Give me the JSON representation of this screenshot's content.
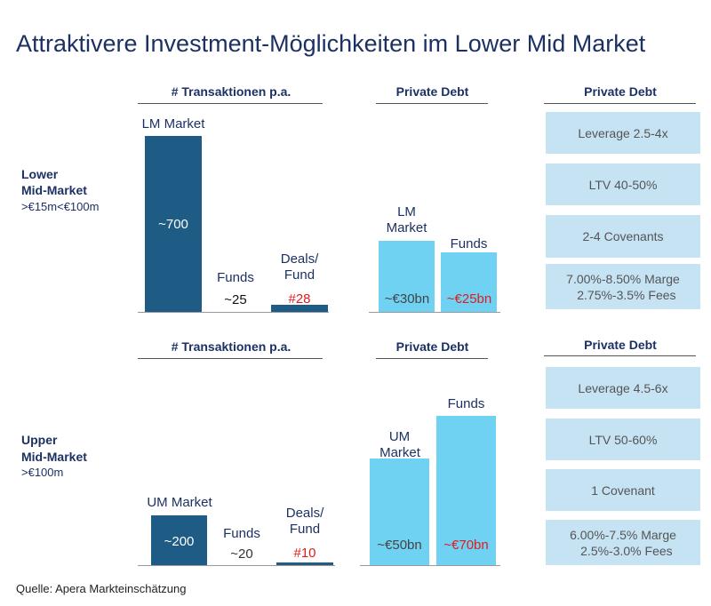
{
  "title": "Attraktivere Investment-Möglichkeiten im Lower Mid Market",
  "source": "Quelle: Apera Markteinschätzung",
  "colors": {
    "dark_bar": "#1e5b85",
    "light_bar": "#6fd2f2",
    "box": "#c6e3f4",
    "highlight": "#e31b1b"
  },
  "chart_data": [
    {
      "type": "bar",
      "segment": {
        "name": "Lower",
        "name2": "Mid-Market",
        "range": ">€15m<€100m"
      },
      "transactions": {
        "title": "# Transaktionen p.a.",
        "bars": [
          {
            "label": "LM Market",
            "value": 700,
            "text": "~700"
          },
          {
            "label": "Funds",
            "value": 25,
            "text": "~25",
            "no_bar": true
          },
          {
            "label": "Deals/",
            "label2": "Fund",
            "value": 28,
            "text": "#28"
          }
        ]
      },
      "private_debt": {
        "title": "Private Debt",
        "bars": [
          {
            "label": "LM",
            "label2": "Market",
            "value": 30,
            "text": "~€30bn"
          },
          {
            "label": "Funds",
            "value": 25,
            "text": "~€25bn"
          }
        ]
      },
      "terms": {
        "title": "Private Debt",
        "items": [
          "Leverage 2.5-4x",
          "LTV 40-50%",
          "2-4 Covenants",
          "7.00%-8.50% Marge\n  2.75%-3.5% Fees"
        ]
      }
    },
    {
      "type": "bar",
      "segment": {
        "name": "Upper",
        "name2": "Mid-Market",
        "range": ">€100m"
      },
      "transactions": {
        "title": "# Transaktionen p.a.",
        "bars": [
          {
            "label": "UM Market",
            "value": 200,
            "text": "~200"
          },
          {
            "label": "Funds",
            "value": 20,
            "text": "~20",
            "no_bar": true
          },
          {
            "label": "Deals/",
            "label2": "Fund",
            "value": 10,
            "text": "#10"
          }
        ]
      },
      "private_debt": {
        "title": "Private Debt",
        "bars": [
          {
            "label": "UM",
            "label2": "Market",
            "value": 50,
            "text": "~€50bn"
          },
          {
            "label": "Funds",
            "value": 70,
            "text": "~€70bn"
          }
        ]
      },
      "terms": {
        "title": "Private Debt",
        "items": [
          "Leverage 4.5-6x",
          "LTV 50-60%",
          "1 Covenant",
          "6.00%-7.5% Marge\n  2.5%-3.0% Fees"
        ]
      }
    }
  ]
}
